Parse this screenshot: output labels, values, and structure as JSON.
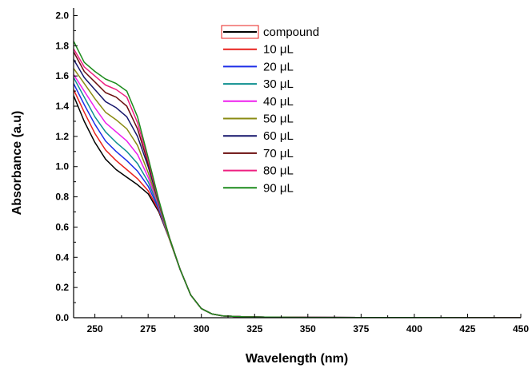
{
  "chart_data": {
    "type": "line",
    "xlabel": "Wavelength (nm)",
    "ylabel": "Absorbance (a.u)",
    "xlim": [
      240,
      450
    ],
    "ylim": [
      0,
      2.05
    ],
    "xticks": [
      250,
      275,
      300,
      325,
      350,
      375,
      400,
      425,
      450
    ],
    "yticks": [
      0.0,
      0.2,
      0.4,
      0.6,
      0.8,
      1.0,
      1.2,
      1.4,
      1.6,
      1.8,
      2.0
    ],
    "xtick_labels": [
      "250",
      "275",
      "300",
      "325",
      "350",
      "375",
      "400",
      "425",
      "450"
    ],
    "ytick_labels": [
      "0.0",
      "0.2",
      "0.4",
      "0.6",
      "0.8",
      "1.0",
      "1.2",
      "1.4",
      "1.6",
      "1.8",
      "2.0"
    ],
    "legend_position": "top-center",
    "grid": false,
    "series": [
      {
        "name": "compound",
        "color": "#000000",
        "x": [
          240,
          245,
          250,
          255,
          260,
          265,
          270,
          275,
          280,
          285,
          290,
          295,
          300,
          305,
          310,
          320,
          330,
          340,
          350,
          375,
          400,
          450
        ],
        "y": [
          1.47,
          1.3,
          1.16,
          1.05,
          0.98,
          0.93,
          0.88,
          0.82,
          0.7,
          0.52,
          0.32,
          0.15,
          0.06,
          0.025,
          0.012,
          0.006,
          0.004,
          0.003,
          0.002,
          0.001,
          0.001,
          0.0
        ]
      },
      {
        "name": "10 μL",
        "color": "#e8211c",
        "x": [
          240,
          245,
          250,
          255,
          260,
          265,
          270,
          275,
          280,
          285,
          290,
          295,
          300,
          305,
          310,
          320,
          330,
          340,
          350,
          375,
          400,
          450
        ],
        "y": [
          1.51,
          1.36,
          1.22,
          1.11,
          1.04,
          0.98,
          0.92,
          0.84,
          0.71,
          0.52,
          0.32,
          0.15,
          0.06,
          0.025,
          0.012,
          0.006,
          0.004,
          0.003,
          0.002,
          0.001,
          0.001,
          0.0
        ]
      },
      {
        "name": "20 μL",
        "color": "#1c2de8",
        "x": [
          240,
          245,
          250,
          255,
          260,
          265,
          270,
          275,
          280,
          285,
          290,
          295,
          300,
          305,
          310,
          320,
          330,
          340,
          350,
          375,
          400,
          450
        ],
        "y": [
          1.55,
          1.41,
          1.28,
          1.17,
          1.1,
          1.04,
          0.97,
          0.87,
          0.72,
          0.52,
          0.32,
          0.15,
          0.06,
          0.025,
          0.012,
          0.006,
          0.004,
          0.003,
          0.002,
          0.001,
          0.001,
          0.0
        ]
      },
      {
        "name": "30 μL",
        "color": "#0e8f8f",
        "x": [
          240,
          245,
          250,
          255,
          260,
          265,
          270,
          275,
          280,
          285,
          290,
          295,
          300,
          305,
          310,
          320,
          330,
          340,
          350,
          375,
          400,
          450
        ],
        "y": [
          1.59,
          1.46,
          1.33,
          1.23,
          1.16,
          1.1,
          1.02,
          0.9,
          0.73,
          0.52,
          0.32,
          0.15,
          0.06,
          0.025,
          0.012,
          0.006,
          0.004,
          0.003,
          0.002,
          0.001,
          0.001,
          0.0
        ]
      },
      {
        "name": "40 μL",
        "color": "#ee1fee",
        "x": [
          240,
          245,
          250,
          255,
          260,
          265,
          270,
          275,
          280,
          285,
          290,
          295,
          300,
          305,
          310,
          320,
          330,
          340,
          350,
          375,
          400,
          450
        ],
        "y": [
          1.61,
          1.5,
          1.39,
          1.29,
          1.23,
          1.17,
          1.08,
          0.93,
          0.74,
          0.52,
          0.32,
          0.15,
          0.06,
          0.025,
          0.012,
          0.006,
          0.004,
          0.003,
          0.002,
          0.001,
          0.001,
          0.0
        ]
      },
      {
        "name": "50 μL",
        "color": "#8a8b12",
        "x": [
          240,
          245,
          250,
          255,
          260,
          265,
          270,
          275,
          280,
          285,
          290,
          295,
          300,
          305,
          310,
          320,
          330,
          340,
          350,
          375,
          400,
          450
        ],
        "y": [
          1.65,
          1.55,
          1.45,
          1.36,
          1.31,
          1.25,
          1.14,
          0.96,
          0.75,
          0.52,
          0.32,
          0.15,
          0.06,
          0.025,
          0.012,
          0.006,
          0.004,
          0.003,
          0.002,
          0.001,
          0.001,
          0.0
        ]
      },
      {
        "name": "60 μL",
        "color": "#15156b",
        "x": [
          240,
          245,
          250,
          255,
          260,
          265,
          270,
          275,
          280,
          285,
          290,
          295,
          300,
          305,
          310,
          320,
          330,
          340,
          350,
          375,
          400,
          450
        ],
        "y": [
          1.71,
          1.59,
          1.51,
          1.43,
          1.39,
          1.33,
          1.2,
          1.0,
          0.76,
          0.53,
          0.32,
          0.15,
          0.06,
          0.025,
          0.012,
          0.006,
          0.004,
          0.003,
          0.002,
          0.001,
          0.001,
          0.0
        ]
      },
      {
        "name": "70 μL",
        "color": "#6b0e0e",
        "x": [
          240,
          245,
          250,
          255,
          260,
          265,
          270,
          275,
          280,
          285,
          290,
          295,
          300,
          305,
          310,
          320,
          330,
          340,
          350,
          375,
          400,
          450
        ],
        "y": [
          1.76,
          1.63,
          1.56,
          1.49,
          1.46,
          1.4,
          1.25,
          1.02,
          0.77,
          0.53,
          0.32,
          0.15,
          0.06,
          0.025,
          0.012,
          0.006,
          0.004,
          0.003,
          0.002,
          0.001,
          0.001,
          0.0
        ]
      },
      {
        "name": "80 μL",
        "color": "#ee1f80",
        "x": [
          240,
          245,
          250,
          255,
          260,
          265,
          270,
          275,
          280,
          285,
          290,
          295,
          300,
          305,
          310,
          320,
          330,
          340,
          350,
          375,
          400,
          450
        ],
        "y": [
          1.78,
          1.66,
          1.6,
          1.54,
          1.51,
          1.46,
          1.29,
          1.04,
          0.77,
          0.53,
          0.32,
          0.15,
          0.06,
          0.025,
          0.012,
          0.006,
          0.004,
          0.003,
          0.002,
          0.001,
          0.001,
          0.0
        ]
      },
      {
        "name": "90 μL",
        "color": "#1c8b1c",
        "x": [
          240,
          245,
          250,
          255,
          260,
          265,
          270,
          275,
          280,
          285,
          290,
          295,
          300,
          305,
          310,
          320,
          330,
          340,
          350,
          375,
          400,
          450
        ],
        "y": [
          1.83,
          1.69,
          1.63,
          1.58,
          1.55,
          1.5,
          1.33,
          1.06,
          0.78,
          0.53,
          0.32,
          0.15,
          0.06,
          0.025,
          0.012,
          0.006,
          0.004,
          0.003,
          0.002,
          0.001,
          0.001,
          0.0
        ]
      }
    ]
  }
}
